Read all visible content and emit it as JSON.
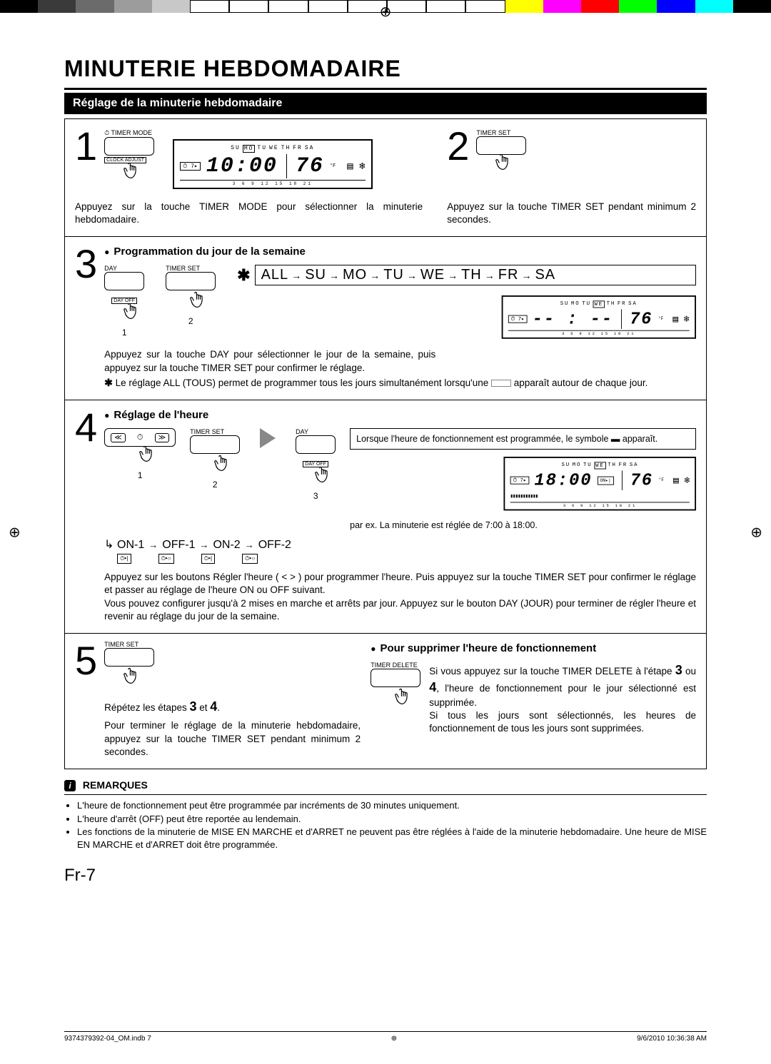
{
  "colorbar": [
    "#000000",
    "#3a3a3a",
    "#6b6b6b",
    "#9c9c9c",
    "#c8c8c8",
    "#ffffff",
    "#ffffff",
    "#ffffff",
    "#ffffff",
    "#ffffff",
    "#ffffff",
    "#ffffff",
    "#ffffff",
    "#ffff00",
    "#ff00ff",
    "#ff0000",
    "#00ff00",
    "#0000ff",
    "#00ffff",
    "#000000"
  ],
  "title": "MINUTERIE HEBDOMADAIRE",
  "subtitle": "Réglage de la minuterie hebdomadaire",
  "step1": {
    "num": "1",
    "btn_label": "TIMER MODE",
    "btn_sublabel": "CLOCK ADJUST",
    "lcd_days": [
      "SU",
      "MO",
      "TU",
      "WE",
      "TH",
      "FR",
      "SA"
    ],
    "lcd_day_selected": "MO",
    "lcd_time": "10:00",
    "lcd_temp": "76",
    "lcd_unit": "°F",
    "lcd_badge": "⏱ 7▸",
    "lcd_ticks": "3  6  9  12  15  18  21",
    "text": "Appuyez sur la touche TIMER MODE pour sélectionner la minuterie hebdomadaire."
  },
  "step2": {
    "num": "2",
    "btn_label": "TIMER SET",
    "text": "Appuyez sur la touche TIMER SET pendant minimum 2 secondes."
  },
  "step3": {
    "num": "3",
    "heading": "Programmation du jour de la semaine",
    "btn1_label": "DAY",
    "btn1_sublabel": "DAY OFF",
    "btn2_label": "TIMER SET",
    "n1": "1",
    "n2": "2",
    "star": "✱",
    "chain": [
      "ALL",
      "SU",
      "MO",
      "TU",
      "WE",
      "TH",
      "FR",
      "SA"
    ],
    "lcd_days": [
      "SU",
      "MO",
      "TU",
      "WE",
      "TH",
      "FR",
      "SA"
    ],
    "lcd_day_selected": "WE",
    "lcd_time": "-- : --",
    "lcd_temp": "76",
    "lcd_unit": "°F",
    "lcd_badge": "⏱ 7▸",
    "lcd_ticks": "3  6  9  12  15  18  21",
    "text1": "Appuyez sur la touche DAY pour sélectionner le jour de la semaine, puis appuyez sur la touche TIMER SET pour confirmer le réglage.",
    "text2a": "Le réglage ALL (TOUS) permet de programmer tous les jours simultanément lorsqu'une ",
    "text2b": " apparaît autour de chaque jour."
  },
  "step4": {
    "num": "4",
    "heading": "Réglage de l'heure",
    "btn2_label": "TIMER SET",
    "btn3_label": "DAY",
    "btn3_sublabel": "DAY OFF",
    "n1": "1",
    "n2": "2",
    "n3": "3",
    "sym": [
      "ON-1",
      "OFF-1",
      "ON-2",
      "OFF-2"
    ],
    "sym_icons": [
      "⏱▸|",
      "⏱▸○",
      "⏱▸|",
      "⏱▸○"
    ],
    "note": "Lorsque l'heure de fonctionnement est programmée, le symbole ▬ apparaît.",
    "lcd_days": [
      "SU",
      "MO",
      "TU",
      "WE",
      "TH",
      "FR",
      "SA"
    ],
    "lcd_day_selected": "WE",
    "lcd_time": "18:00",
    "lcd_on": "ON▸|",
    "lcd_temp": "76",
    "lcd_unit": "°F",
    "lcd_badge": "⏱ 7▸",
    "lcd_ticks": "3  6  9  12  15  18  21",
    "example": "par ex. La minuterie est réglée de 7:00 à 18:00.",
    "text": "Appuyez sur les boutons Régler l'heure ( < > ) pour programmer l'heure. Puis appuyez sur la touche TIMER SET pour confirmer le réglage et passer au réglage de l'heure ON ou OFF suivant.\nVous pouvez configurer jusqu'à 2 mises en marche et arrêts par jour. Appuyez sur le bouton DAY (JOUR) pour terminer de régler l'heure et revenir au réglage du jour de la semaine."
  },
  "step5": {
    "num": "5",
    "btn_label": "TIMER SET",
    "repeat_a": "Répétez les étapes ",
    "repeat_3": "3",
    "repeat_et": " et ",
    "repeat_4": "4",
    "repeat_dot": ".",
    "text": "Pour terminer le réglage de la minuterie hebdomadaire, appuyez sur la touche TIMER SET pendant minimum 2 secondes.",
    "heading_r": "Pour supprimer l'heure de fonctionnement",
    "btn_r_label": "TIMER DELETE",
    "text_r_a": "Si vous appuyez sur la touche TIMER DELETE à l'étape ",
    "text_r_3": "3",
    "text_r_ou": " ou ",
    "text_r_4": "4",
    "text_r_b": ", l'heure de fonctionnement pour le jour sélectionné est supprimée.",
    "text_r_c": "Si tous les jours sont sélectionnés, les heures de fonctionnement de tous les jours sont supprimées."
  },
  "remarks": {
    "heading": "REMARQUES",
    "items": [
      "L'heure de fonctionnement peut être programmée par incréments de 30 minutes uniquement.",
      "L'heure d'arrêt (OFF) peut être reportée au lendemain.",
      "Les fonctions de la minuterie de MISE EN MARCHE et d'ARRET ne peuvent pas être réglées à l'aide de la minuterie hebdomadaire. Une heure de MISE EN MARCHE et d'ARRET doit être programmée."
    ]
  },
  "page_number": "Fr-7",
  "footer_left": "9374379392-04_OM.indb   7",
  "footer_right": "9/6/2010   10:36:38 AM"
}
